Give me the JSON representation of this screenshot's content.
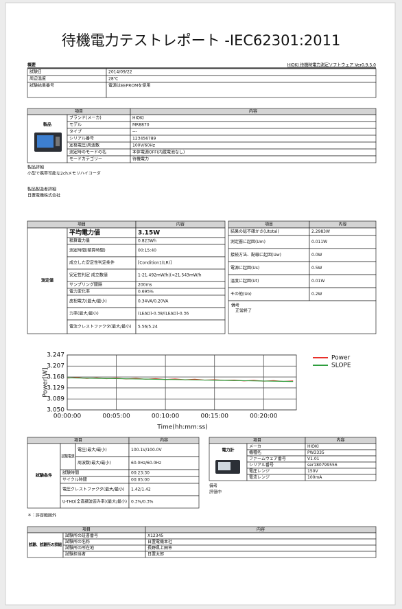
{
  "title": "待機電力テストレポート -IEC62301:2011",
  "summary": {
    "label": "概要",
    "software": "HIOKI 待機時電力測定ソフトウェア Ver0.9.5.0",
    "rows": [
      [
        "試験日",
        "2014/09/22"
      ],
      [
        "周辺温度",
        "28℃"
      ],
      [
        "試験結果番号",
        "電源はEEPROMを使用"
      ]
    ]
  },
  "product": {
    "header": [
      "項目",
      "内容"
    ],
    "group": "製品",
    "rows": [
      [
        "ブランド(メーカ)",
        "HIOKI"
      ],
      [
        "モデル",
        "MR8870"
      ],
      [
        "タイプ",
        "---"
      ],
      [
        "シリアル番号",
        "123456789"
      ],
      [
        "定格電圧/周波数",
        "100V/60Hz"
      ],
      [
        "測定時のモードの名",
        "本体電源OFF(内蔵電池なし)"
      ],
      [
        "モードカテゴリー",
        "待機電力"
      ]
    ]
  },
  "product_detail": {
    "label": "製品詳細",
    "text": "小型で携帯可能な2chメモリハイコーダ"
  },
  "maker_detail": {
    "label": "製品製造者詳細",
    "text": "日置電機株式会社"
  },
  "measurement": {
    "header": [
      "項目",
      "内容"
    ],
    "group": "測定値",
    "rows": [
      [
        "平均電力値",
        "3.15W"
      ],
      [
        "積算電力量",
        "0.823Wh"
      ],
      [
        "測定時間(積算時間)",
        "00:15:40"
      ],
      [
        "成立した安定性判定条件",
        "[Condition1(LR)]"
      ],
      [
        "安定性判定 成立数値",
        "1-21.492mW/h|(<21.543mW/h"
      ],
      [
        "サンプリング間隔",
        "200ms"
      ],
      [
        "電力変化率",
        "0.695%"
      ],
      [
        "皮相電力(最大/最小)",
        "0.34VA/0.20VA"
      ],
      [
        "力率(最大/最小)",
        "(LEAD)-0.38/(LEAD)-0.36"
      ],
      [
        "電流クレストファクタ(最大/最小)",
        "5.56/5.24"
      ]
    ]
  },
  "uncertainty": {
    "header": [
      "項目",
      "内容"
    ],
    "rows": [
      [
        "結果の総不確かさ(Utotal)",
        "2.2983W"
      ],
      [
        "測定器に起因(Um)",
        "0.011W"
      ],
      [
        "接続方法、配線に起因(Uw)",
        "0.0W"
      ],
      [
        "電源に起因(Us)",
        "0.5W"
      ],
      [
        "温度に起因(Ut)",
        "0.01W"
      ],
      [
        "その他(Uo)",
        "0.2W"
      ]
    ],
    "note_label": "備考",
    "note": "正常終了"
  },
  "chart_data": {
    "type": "line",
    "y_label": "Power[W]",
    "x_label": "Time(hh:mm:ss)",
    "x": [
      0,
      60,
      120,
      180,
      240,
      300,
      360,
      420,
      480,
      540,
      600,
      660,
      720,
      780,
      840,
      900,
      960,
      1020,
      1080,
      1140,
      1200,
      1260,
      1320,
      1380
    ],
    "series": [
      {
        "name": "Power",
        "color": "#e8302a",
        "values": [
          3.164,
          3.166,
          3.163,
          3.165,
          3.162,
          3.164,
          3.161,
          3.163,
          3.16,
          3.162,
          3.159,
          3.161,
          3.158,
          3.16,
          3.157,
          3.158,
          3.156,
          3.157,
          3.154,
          3.156,
          3.153,
          3.155,
          3.152,
          3.154
        ]
      },
      {
        "name": "SLOPE",
        "color": "#2e9e3e",
        "values": [
          3.165,
          3.1644,
          3.1639,
          3.1633,
          3.1627,
          3.1622,
          3.1616,
          3.161,
          3.1605,
          3.1599,
          3.1593,
          3.1588,
          3.1582,
          3.1576,
          3.157,
          3.1565,
          3.1559,
          3.1553,
          3.1548,
          3.1542,
          3.1536,
          3.1531,
          3.1525,
          3.1519
        ]
      }
    ],
    "xlim": [
      0,
      1400
    ],
    "ylim": [
      3.05,
      3.247
    ],
    "xticks": [
      {
        "value": 0,
        "label": "00:00:00"
      },
      {
        "value": 300,
        "label": "00:05:00"
      },
      {
        "value": 600,
        "label": "00:10:00"
      },
      {
        "value": 900,
        "label": "00:15:00"
      },
      {
        "value": 1200,
        "label": "00:20:00"
      }
    ],
    "yticks": [
      {
        "value": 3.05,
        "label": "3.050"
      },
      3.089,
      3.129,
      3.168,
      3.207,
      3.247
    ],
    "grid": true,
    "legend": "right"
  },
  "conditions": {
    "header": [
      "項目",
      "内容"
    ],
    "group": "試験条件",
    "sub_group": "試験電源",
    "rows": [
      [
        "電圧(最大/最小)",
        "100.1V/100.0V"
      ],
      [
        "周波数(最大/最小)",
        "60.0Hz/60.0Hz"
      ],
      [
        "試験時間",
        "00:23:30"
      ],
      [
        "サイクル時間",
        "00:05:00"
      ],
      [
        "電圧クレストファクタ(最大/最小)",
        "1.42/1.42"
      ],
      [
        "U-THD(全高調波歪み率)(最大/最小)",
        "0.3%/0.3%"
      ]
    ]
  },
  "instrument": {
    "header": [
      "項目",
      "内容"
    ],
    "group": "電力計",
    "rows": [
      [
        "メーカ",
        "HIOKI"
      ],
      [
        "機種名",
        "PW3335"
      ],
      [
        "ファームウェア番号",
        "V1.01"
      ],
      [
        "シリアル番号",
        "ser180799556"
      ],
      [
        "電圧レンジ",
        "150V"
      ],
      [
        "電流レンジ",
        "100mA"
      ]
    ],
    "note_label": "備考",
    "note": "評価中"
  },
  "footnote": "＊：許容範囲外",
  "lab": {
    "header": [
      "項目",
      "内容"
    ],
    "group": "試験、試験所の詳細",
    "rows": [
      [
        "試験所の証書番号",
        "X12345"
      ],
      [
        "試験所の名称",
        "日置電機本社"
      ],
      [
        "試験所の所在地",
        "長野県上田市"
      ],
      [
        "試験担当者",
        "日置太郎"
      ]
    ]
  }
}
